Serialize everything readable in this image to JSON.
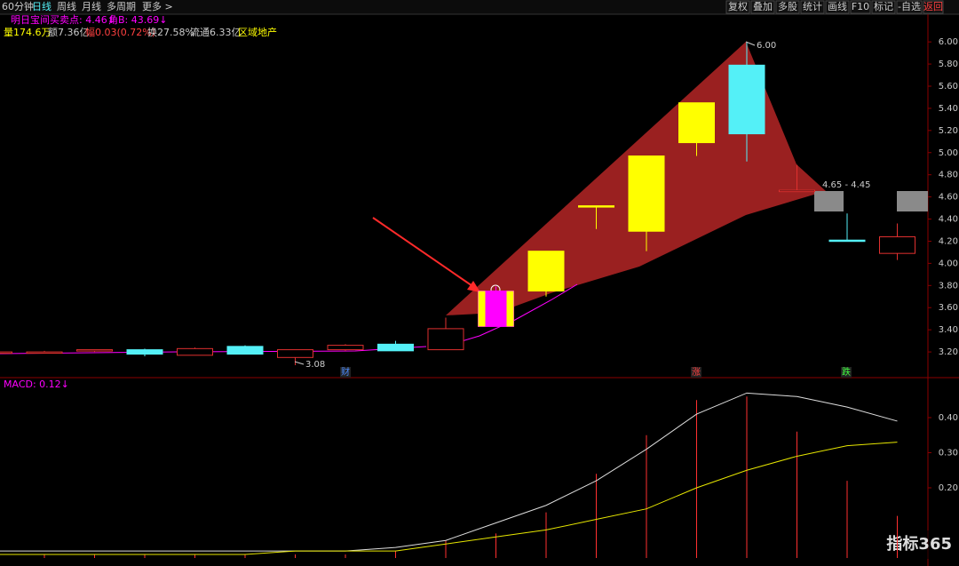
{
  "toolbar": {
    "left": [
      "60分钟",
      "日线",
      "周线",
      "月线",
      "多周期",
      "更多 >"
    ],
    "right": [
      "复权",
      "叠加",
      "多股",
      "统计",
      "画线",
      "F10",
      "标记",
      "-自选",
      "返回"
    ]
  },
  "indicator_line": [
    "明日宝间买卖点: 4.46↓",
    "角B: 43.69↓"
  ],
  "stats_line": [
    "量174.6万",
    "额7.36亿",
    "幅0.03(0.72%)",
    "换27.58%",
    "流通6.33亿",
    "区域地产"
  ],
  "price_panel": {
    "ylim": [
      3.0,
      6.25
    ],
    "yticks": [
      {
        "value": 3.2,
        "label": "3.20"
      },
      {
        "value": 3.4,
        "label": "3.40"
      },
      {
        "value": 3.6,
        "label": "3.60"
      },
      {
        "value": 3.8,
        "label": "3.80"
      },
      {
        "value": 4.0,
        "label": "4.00"
      },
      {
        "value": 4.2,
        "label": "4.20"
      },
      {
        "value": 4.4,
        "label": "4.40"
      },
      {
        "value": 4.6,
        "label": "4.60"
      },
      {
        "value": 4.8,
        "label": "4.80"
      },
      {
        "value": 5.0,
        "label": "5.00"
      },
      {
        "value": 5.2,
        "label": "5.20"
      },
      {
        "value": 5.4,
        "label": "5.40"
      },
      {
        "value": 5.6,
        "label": "5.60"
      },
      {
        "value": 5.8,
        "label": "5.80"
      },
      {
        "value": 6.0,
        "label": "6.00"
      }
    ],
    "candles": [
      {
        "open": 3.19,
        "high": 3.2,
        "low": 3.18,
        "close": 3.2,
        "color": "#e0302f"
      },
      {
        "open": 3.19,
        "high": 3.21,
        "low": 3.19,
        "close": 3.2,
        "color": "#e0302f"
      },
      {
        "open": 3.21,
        "high": 3.22,
        "low": 3.2,
        "close": 3.22,
        "color": "#e0302f"
      },
      {
        "open": 3.22,
        "high": 3.23,
        "low": 3.16,
        "close": 3.18,
        "color": "#54f0f7"
      },
      {
        "open": 3.17,
        "high": 3.24,
        "low": 3.17,
        "close": 3.23,
        "color": "#e0302f"
      },
      {
        "open": 3.25,
        "high": 3.26,
        "low": 3.18,
        "close": 3.18,
        "color": "#54f0f7"
      },
      {
        "open": 3.15,
        "high": 3.22,
        "low": 3.08,
        "close": 3.22,
        "color": "#e0302f"
      },
      {
        "open": 3.22,
        "high": 3.27,
        "low": 3.21,
        "close": 3.26,
        "color": "#e0302f"
      },
      {
        "open": 3.27,
        "high": 3.3,
        "low": 3.21,
        "close": 3.21,
        "color": "#54f0f7"
      },
      {
        "open": 3.22,
        "high": 3.51,
        "low": 3.22,
        "close": 3.41,
        "color": "#e0302f"
      },
      {
        "open": 3.43,
        "high": 3.79,
        "low": 3.43,
        "close": 3.75,
        "color": "#ff00ff"
      },
      {
        "open": 3.75,
        "high": 4.11,
        "low": 3.7,
        "close": 4.11,
        "color": "#ffff00"
      },
      {
        "open": 4.52,
        "high": 4.52,
        "low": 4.31,
        "close": 4.52,
        "color": "#ffff00"
      },
      {
        "open": 4.29,
        "high": 4.97,
        "low": 4.11,
        "close": 4.97,
        "color": "#ffff00"
      },
      {
        "open": 5.09,
        "high": 5.45,
        "low": 4.97,
        "close": 5.45,
        "color": "#ffff00"
      },
      {
        "open": 5.79,
        "high": 6.0,
        "low": 4.92,
        "close": 5.17,
        "color": "#54f0f7"
      },
      {
        "open": 4.66,
        "high": 4.89,
        "low": 4.66,
        "close": 4.66,
        "color": "#e0302f"
      },
      {
        "open": 4.21,
        "high": 4.45,
        "low": 4.21,
        "close": 4.21,
        "color": "#54f0f7"
      },
      {
        "open": 4.09,
        "high": 4.36,
        "low": 4.03,
        "close": 4.24,
        "color": "#e0302f"
      }
    ],
    "annotations": [
      "6.00",
      "3.08",
      "4.65 - 4.45"
    ],
    "event_markers": [
      "财",
      "涨",
      "跌"
    ]
  },
  "macd_panel": {
    "title": "MACD: 0.12↓",
    "ylim": [
      0,
      0.5
    ],
    "yticks": [
      {
        "value": 0.2,
        "label": "0.20"
      },
      {
        "value": 0.3,
        "label": "0.30"
      },
      {
        "value": 0.4,
        "label": "0.40"
      }
    ],
    "dif": [
      0.02,
      0.02,
      0.02,
      0.02,
      0.02,
      0.02,
      0.02,
      0.02,
      0.03,
      0.05,
      0.1,
      0.15,
      0.22,
      0.31,
      0.41,
      0.47,
      0.46,
      0.43,
      0.39
    ],
    "dea": [
      0.01,
      0.01,
      0.01,
      0.01,
      0.01,
      0.01,
      0.02,
      0.02,
      0.02,
      0.04,
      0.06,
      0.08,
      0.11,
      0.14,
      0.2,
      0.25,
      0.29,
      0.32,
      0.33
    ],
    "macd": [
      0.01,
      0.01,
      0.01,
      0.01,
      0.01,
      0.01,
      0.01,
      0.01,
      0.02,
      0.05,
      0.07,
      0.13,
      0.24,
      0.35,
      0.45,
      0.46,
      0.36,
      0.22,
      0.12
    ]
  },
  "watermark": "指标365"
}
